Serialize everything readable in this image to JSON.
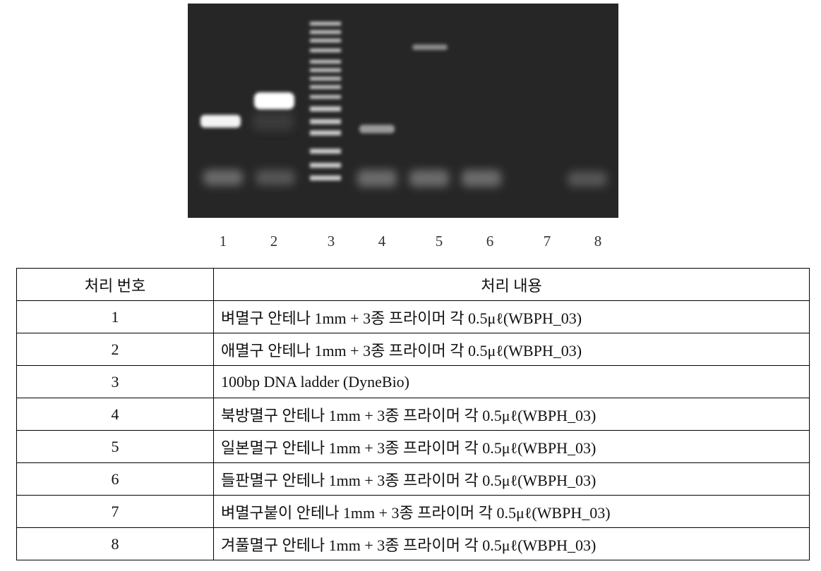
{
  "lanes": [
    "1",
    "2",
    "3",
    "4",
    "5",
    "6",
    "7",
    "8"
  ],
  "table": {
    "header": [
      "처리 번호",
      "처리 내용"
    ],
    "rows": [
      [
        "1",
        "벼멸구 안테나 1mm + 3종 프라이머 각 0.5μℓ(WBPH_03)"
      ],
      [
        "2",
        "애멸구 안테나 1mm + 3종 프라이머 각 0.5μℓ(WBPH_03)"
      ],
      [
        "3",
        "100bp DNA ladder (DyneBio)"
      ],
      [
        "4",
        "북방멸구 안테나 1mm + 3종 프라이머 각 0.5μℓ(WBPH_03)"
      ],
      [
        "5",
        "일본멸구 안테나 1mm + 3종 프라이머 각 0.5μℓ(WBPH_03)"
      ],
      [
        "6",
        "들판멸구 안테나 1mm + 3종 프라이머 각 0.5μℓ(WBPH_03)"
      ],
      [
        "7",
        "벼멸구붙이 안테나 1mm + 3종 프라이머 각 0.5μℓ(WBPH_03)"
      ],
      [
        "8",
        "겨풀멸구 안테나 1mm + 3종 프라이머 각 0.5μℓ(WBPH_03)"
      ]
    ]
  }
}
